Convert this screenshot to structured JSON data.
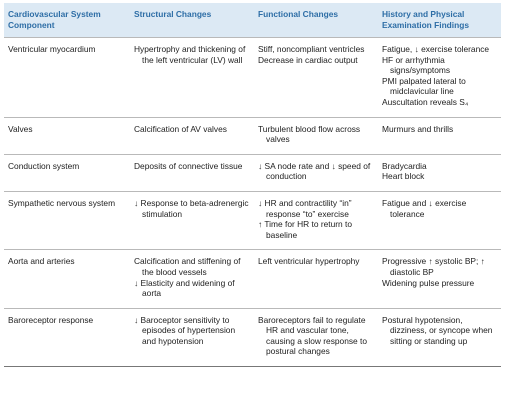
{
  "table": {
    "header": [
      "Cardiovascular System Component",
      "Structural Changes",
      "Functional Changes",
      "History and Physical Examination Findings"
    ],
    "rows": [
      [
        [
          "Ventricular myocardium"
        ],
        [
          "Hypertrophy and thickening of the left ventricular (LV) wall"
        ],
        [
          "Stiff, noncompliant ventricles",
          "Decrease in cardiac output"
        ],
        [
          "Fatigue, ↓ exercise tolerance",
          "HF or arrhythmia signs/symptoms",
          "PMI palpated lateral to midclavicular line",
          "Auscultation reveals S₄"
        ]
      ],
      [
        [
          "Valves"
        ],
        [
          "Calcification of AV valves"
        ],
        [
          "Turbulent blood flow across valves"
        ],
        [
          "Murmurs and thrills"
        ]
      ],
      [
        [
          "Conduction system"
        ],
        [
          "Deposits of connective tissue"
        ],
        [
          "↓ SA node rate and ↓ speed of conduction"
        ],
        [
          "Bradycardia",
          "Heart block"
        ]
      ],
      [
        [
          "Sympathetic nervous system"
        ],
        [
          "↓ Response to beta-adrenergic stimulation"
        ],
        [
          "↓ HR and contractility “in” response “to” exercise",
          "↑ Time for HR to return to baseline"
        ],
        [
          "Fatigue and ↓ exercise tolerance"
        ]
      ],
      [
        [
          "Aorta and arteries"
        ],
        [
          "Calcification and stiffening of the blood vessels",
          "↓ Elasticity and widening of aorta"
        ],
        [
          "Left ventricular hypertrophy"
        ],
        [
          "Progressive ↑ systolic BP; ↑ diastolic BP",
          "Widening pulse pressure"
        ]
      ],
      [
        [
          "Baroreceptor response"
        ],
        [
          "↓ Baroceptor sensitivity to episodes of hypertension and hypotension"
        ],
        [
          "Baroreceptors fail to regulate HR and vascular tone, causing a slow response to postural changes"
        ],
        [
          "Postural hypotension, dizziness, or syncope when sitting or standing up"
        ]
      ]
    ]
  }
}
